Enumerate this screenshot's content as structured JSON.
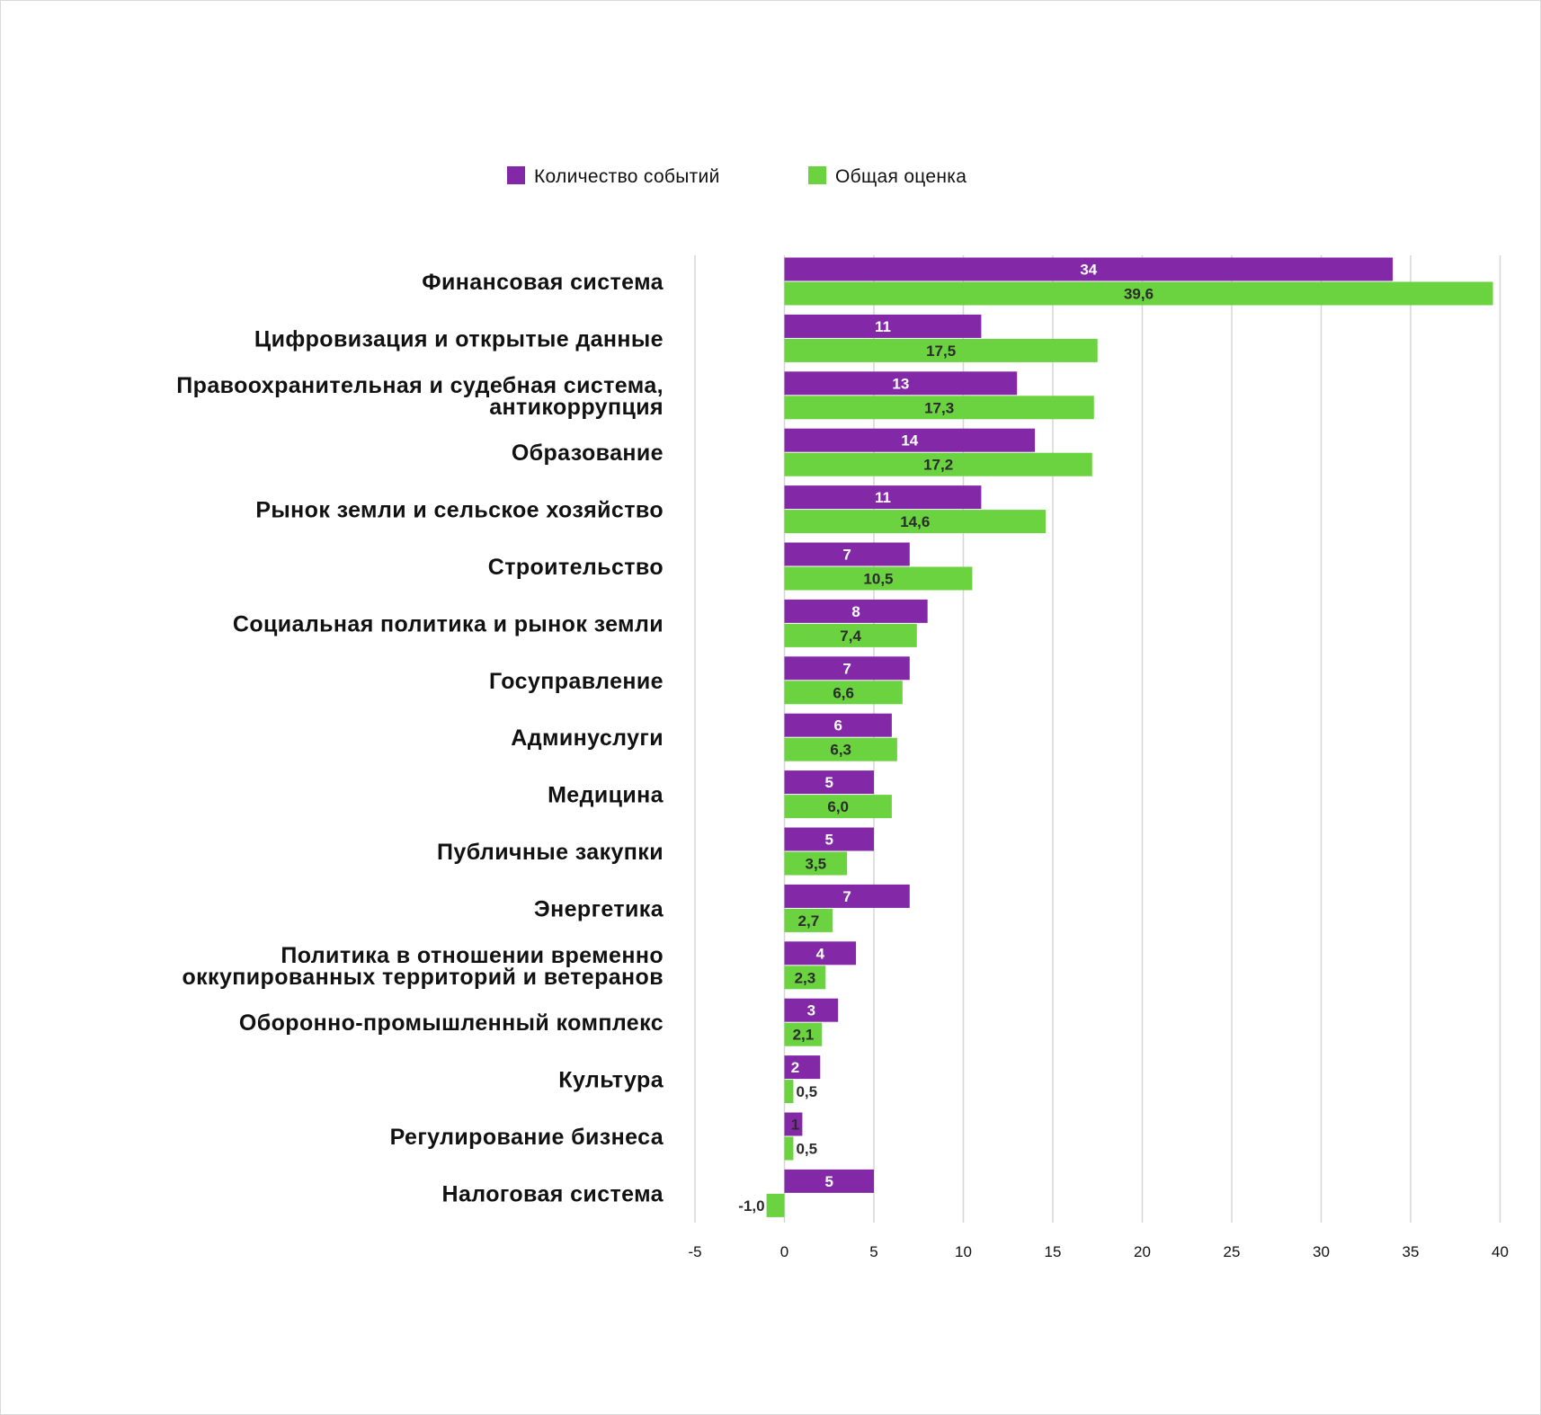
{
  "chart_data": {
    "type": "bar",
    "orientation": "horizontal",
    "categories": [
      [
        "Финансовая система"
      ],
      [
        "Цифровизация и открытые данные"
      ],
      [
        "Правоохранительная и судебная система,",
        "антикоррупция"
      ],
      [
        "Образование"
      ],
      [
        "Рынок земли и сельское хозяйство"
      ],
      [
        "Строительство"
      ],
      [
        "Социальная политика и рынок земли"
      ],
      [
        "Госуправление"
      ],
      [
        "Админуслуги"
      ],
      [
        "Медицина"
      ],
      [
        "Публичные закупки"
      ],
      [
        "Энергетика"
      ],
      [
        "Политика в отношении временно",
        "оккупированных территорий и ветеранов"
      ],
      [
        "Оборонно-промышленный комплекс"
      ],
      [
        "Культура"
      ],
      [
        "Регулирование бизнеса"
      ],
      [
        "Налоговая система"
      ]
    ],
    "series": [
      {
        "name": "Количество событий",
        "color": "#8329a8",
        "label_color": "#ffffff",
        "values": [
          34,
          11,
          13,
          14,
          11,
          7,
          8,
          7,
          6,
          5,
          5,
          7,
          4,
          3,
          2,
          1,
          5
        ],
        "labels": [
          "34",
          "11",
          "13",
          "14",
          "11",
          "7",
          "8",
          "7",
          "6",
          "5",
          "5",
          "7",
          "4",
          "3",
          "2",
          "1",
          "5"
        ]
      },
      {
        "name": "Общая оценка",
        "color": "#6ad33f",
        "label_color": "#2b2b2b",
        "values": [
          39.6,
          17.5,
          17.3,
          17.2,
          14.6,
          10.5,
          7.4,
          6.6,
          6.3,
          6.0,
          3.5,
          2.7,
          2.3,
          2.1,
          0.5,
          0.5,
          -1.0
        ],
        "labels": [
          "39,6",
          "17,5",
          "17,3",
          "17,2",
          "14,6",
          "10,5",
          "7,4",
          "6,6",
          "6,3",
          "6,0",
          "3,5",
          "2,7",
          "2,3",
          "2,1",
          "0,5",
          "0,5",
          "-1,0"
        ]
      }
    ],
    "xlim": [
      -5,
      40
    ],
    "xticks": [
      -5,
      0,
      5,
      10,
      15,
      20,
      25,
      30,
      35,
      40
    ],
    "grid": "vertical",
    "legend_position": "top",
    "title": "",
    "xlabel": "",
    "ylabel": ""
  }
}
